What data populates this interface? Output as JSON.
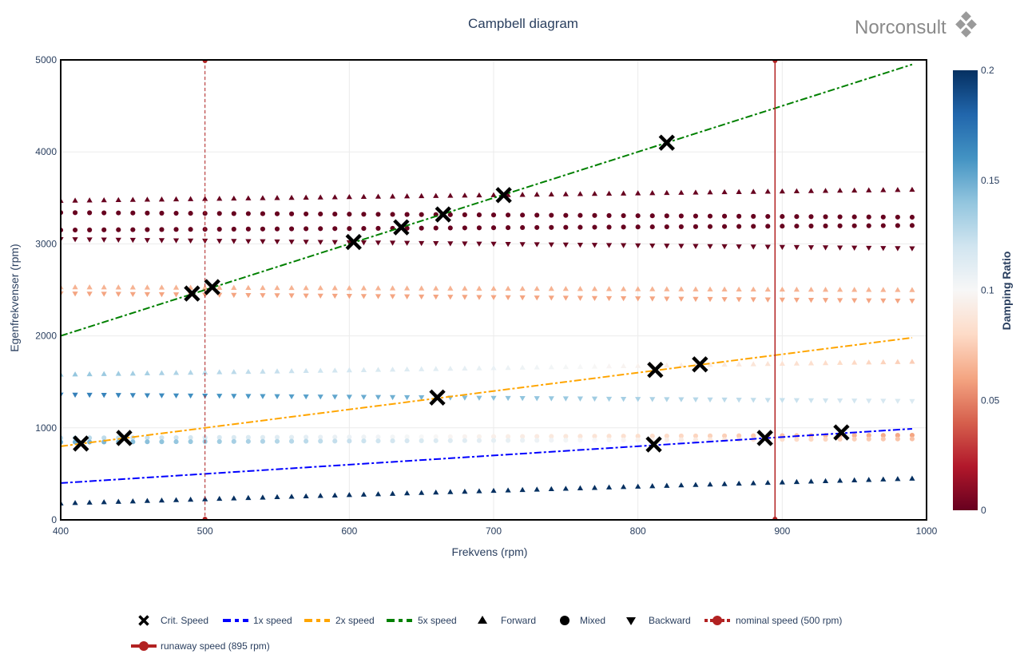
{
  "logo": {
    "text": "Norconsult",
    "color": "#8a8a8a"
  },
  "chart_data": {
    "type": "scatter",
    "title": "Campbell diagram",
    "xlabel": "Frekvens (rpm)",
    "ylabel": "Egenfrekvenser (rpm)",
    "xlim": [
      400,
      1000
    ],
    "ylim": [
      0,
      5000
    ],
    "x_ticks": [
      400,
      500,
      600,
      700,
      800,
      900,
      1000
    ],
    "y_ticks": [
      0,
      1000,
      2000,
      3000,
      4000,
      5000
    ],
    "grid": true,
    "colorbar": {
      "title": "Damping Ratio",
      "range": [
        0,
        0.2
      ],
      "ticks": [
        0,
        0.05,
        0.1,
        0.15,
        0.2
      ],
      "colorscale": [
        "#67001f",
        "#b2182b",
        "#d6604d",
        "#f4a582",
        "#fddbc7",
        "#f7f7f7",
        "#d1e5f0",
        "#92c5de",
        "#4393c3",
        "#2166ac",
        "#053061"
      ]
    },
    "speed_lines": [
      {
        "name": "1x speed",
        "factor": 1,
        "color": "#0000ff",
        "x": [
          400,
          990
        ]
      },
      {
        "name": "2x speed",
        "factor": 2,
        "color": "#ffa500",
        "x": [
          400,
          990
        ]
      },
      {
        "name": "5x speed",
        "factor": 5,
        "color": "#008000",
        "x": [
          400,
          990
        ]
      }
    ],
    "vertical_lines": [
      {
        "name": "nominal speed (500 rpm)",
        "x": 500,
        "color": "#b22222",
        "dash": true
      },
      {
        "name": "runaway speed (895 rpm)",
        "x": 895,
        "color": "#b22222",
        "dash": false
      }
    ],
    "modes": [
      {
        "y0": 180,
        "y1": 450,
        "shape": "forward",
        "damping": [
          0.2,
          0.2
        ]
      },
      {
        "y0": 890,
        "y1": 920,
        "shape": "mixed",
        "damping": [
          0.13,
          0.06
        ]
      },
      {
        "y0": 845,
        "y1": 880,
        "shape": "mixed",
        "damping": [
          0.15,
          0.07
        ]
      },
      {
        "y0": 1360,
        "y1": 1290,
        "shape": "backward",
        "damping": [
          0.17,
          0.115
        ]
      },
      {
        "y0": 1580,
        "y1": 1720,
        "shape": "forward",
        "damping": [
          0.14,
          0.075
        ]
      },
      {
        "y0": 2460,
        "y1": 2380,
        "shape": "backward",
        "damping": [
          0.06,
          0.06
        ]
      },
      {
        "y0": 2530,
        "y1": 2500,
        "shape": "forward",
        "damping": [
          0.065,
          0.065
        ]
      },
      {
        "y0": 3050,
        "y1": 2950,
        "shape": "backward",
        "damping": [
          0.0,
          0.0
        ]
      },
      {
        "y0": 3150,
        "y1": 3200,
        "shape": "mixed",
        "damping": [
          0.0,
          0.0
        ]
      },
      {
        "y0": 3340,
        "y1": 3290,
        "shape": "mixed",
        "damping": [
          0.0,
          0.0
        ]
      },
      {
        "y0": 3470,
        "y1": 3590,
        "shape": "forward",
        "damping": [
          0.0,
          0.0
        ]
      }
    ],
    "critical_speeds": [
      {
        "x": 414,
        "y": 830
      },
      {
        "x": 444,
        "y": 890
      },
      {
        "x": 491,
        "y": 2460
      },
      {
        "x": 505,
        "y": 2530
      },
      {
        "x": 603,
        "y": 3020
      },
      {
        "x": 636,
        "y": 3180
      },
      {
        "x": 661,
        "y": 1330
      },
      {
        "x": 665,
        "y": 3320
      },
      {
        "x": 707,
        "y": 3530
      },
      {
        "x": 811,
        "y": 820
      },
      {
        "x": 812,
        "y": 1630
      },
      {
        "x": 820,
        "y": 4100
      },
      {
        "x": 843,
        "y": 1690
      },
      {
        "x": 888,
        "y": 890
      },
      {
        "x": 941,
        "y": 950
      }
    ],
    "legend": {
      "placement": "bottom",
      "items": [
        {
          "label": "Crit. Speed",
          "symbol": "x"
        },
        {
          "label": "1x speed",
          "symbol": "dash",
          "color": "#0000ff"
        },
        {
          "label": "2x speed",
          "symbol": "dash",
          "color": "#ffa500"
        },
        {
          "label": "5x speed",
          "symbol": "dash",
          "color": "#008000"
        },
        {
          "label": "Forward",
          "symbol": "triangle-up"
        },
        {
          "label": "Mixed",
          "symbol": "circle"
        },
        {
          "label": "Backward",
          "symbol": "triangle-down"
        },
        {
          "label": "nominal speed (500 rpm)",
          "symbol": "line-dot-dash",
          "color": "#b22222"
        },
        {
          "label": "runaway speed (895 rpm)",
          "symbol": "line-dot",
          "color": "#b22222"
        }
      ]
    }
  }
}
